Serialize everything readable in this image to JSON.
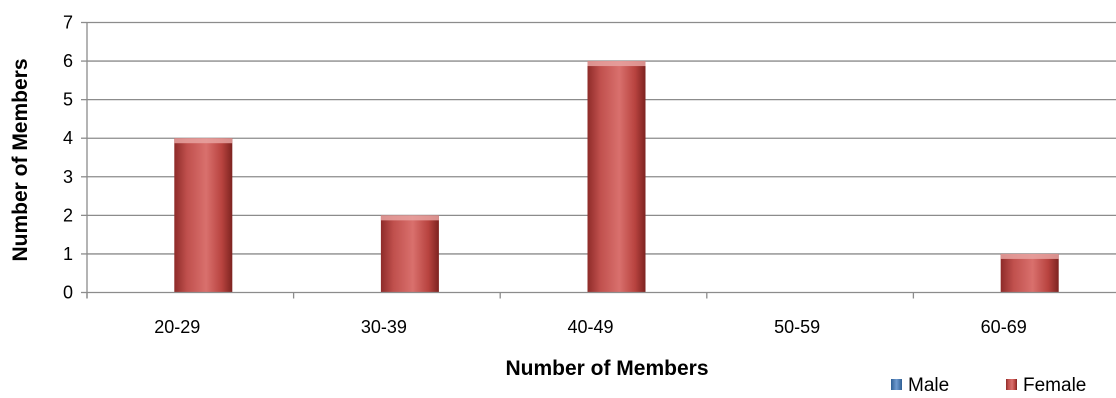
{
  "chart_data": {
    "type": "bar",
    "title": "",
    "xlabel": "Number of Members",
    "ylabel": "Number of Members",
    "categories": [
      "20-29",
      "30-39",
      "40-49",
      "50-59",
      "60-69"
    ],
    "series": [
      {
        "name": "Male",
        "values": [
          0,
          0,
          0,
          0,
          0
        ],
        "color": "#4f81bd"
      },
      {
        "name": "Female",
        "values": [
          4,
          2,
          6,
          0,
          1
        ],
        "color": "#c0504d"
      }
    ],
    "ylim": [
      0,
      7
    ],
    "yticks": [
      "0",
      "1",
      "2",
      "3",
      "4",
      "5",
      "6",
      "7"
    ],
    "grid": true,
    "legend_position": "bottom-right"
  }
}
